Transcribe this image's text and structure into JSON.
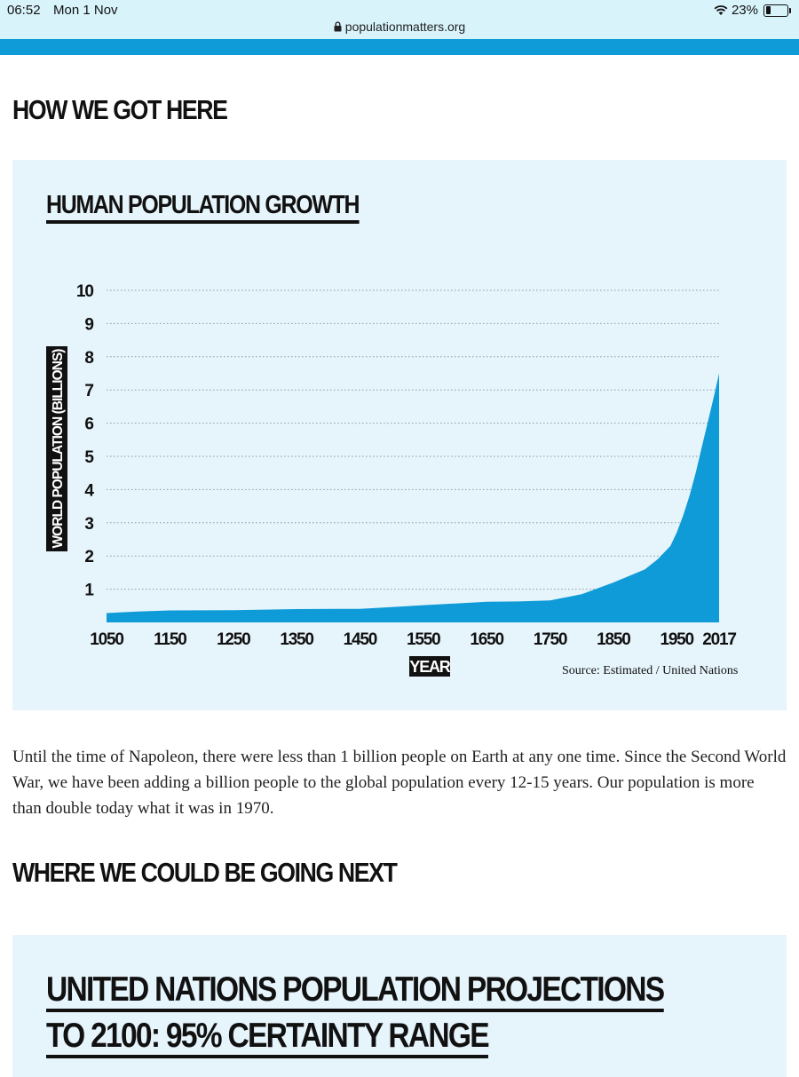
{
  "status_bar": {
    "time": "06:52",
    "date": "Mon 1 Nov",
    "battery": "23%",
    "battery_level": 0.23,
    "url": "populationmatters.org"
  },
  "sections": {
    "how_heading": "HOW WE GOT HERE",
    "next_heading": "WHERE WE COULD BE GOING NEXT"
  },
  "paragraph": "Until the time of Napoleon, there were less than 1 billion people on Earth at any one time. Since the Second World War, we have been adding a billion people to the global population every 12-15 years. Our population is more than double today what it was in 1970.",
  "projection_panel": {
    "title_line1": "UNITED NATIONS POPULATION PROJECTIONS",
    "title_line2": "TO 2100: 95% CERTAINTY RANGE"
  },
  "colors": {
    "accent": "#0e9bd8",
    "panel_bg": "#e6f4fb",
    "status_bg": "#d8f3fa"
  },
  "chart_data": {
    "type": "area",
    "title": "HUMAN POPULATION GROWTH",
    "xlabel": "YEAR",
    "ylabel": "WORLD POPULATION (BILLIONS)",
    "source": "Source: Estimated / United Nations",
    "x_ticks": [
      "1050",
      "1150",
      "1250",
      "1350",
      "1450",
      "1550",
      "1650",
      "1750",
      "1850",
      "1950",
      "2017"
    ],
    "y_ticks": [
      "1",
      "2",
      "3",
      "4",
      "5",
      "6",
      "7",
      "8",
      "9",
      "10"
    ],
    "xlim": [
      1050,
      2017
    ],
    "ylim": [
      0,
      10
    ],
    "grid": "horizontal dotted",
    "series": [
      {
        "x": [
          1050,
          1100,
          1150,
          1250,
          1350,
          1450,
          1500,
          1550,
          1600,
          1650,
          1700,
          1750,
          1800,
          1850,
          1900,
          1920,
          1940,
          1950,
          1960,
          1970,
          1980,
          1990,
          2000,
          2010,
          2017
        ],
        "values": [
          0.28,
          0.33,
          0.36,
          0.37,
          0.4,
          0.41,
          0.46,
          0.52,
          0.57,
          0.62,
          0.63,
          0.66,
          0.85,
          1.2,
          1.6,
          1.9,
          2.3,
          2.7,
          3.2,
          3.8,
          4.5,
          5.3,
          6.1,
          6.9,
          7.5
        ]
      }
    ]
  }
}
